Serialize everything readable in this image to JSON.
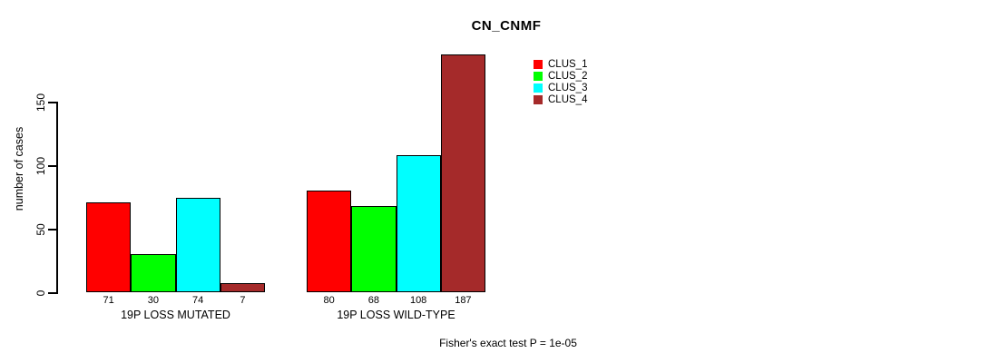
{
  "chart_data": {
    "type": "bar",
    "title": "CN_CNMF",
    "ylabel": "number of cases",
    "xlabel": "",
    "yticks": [
      0,
      50,
      100,
      150
    ],
    "ylim": [
      0,
      195
    ],
    "grid": false,
    "legend_position": "top-right-inside",
    "categories": [
      "19P LOSS MUTATED",
      "19P LOSS WILD-TYPE"
    ],
    "series": [
      {
        "name": "CLUS_1",
        "color": "#FF0000",
        "values": [
          71,
          80
        ]
      },
      {
        "name": "CLUS_2",
        "color": "#00FF00",
        "values": [
          30,
          68
        ]
      },
      {
        "name": "CLUS_3",
        "color": "#00FFFF",
        "values": [
          74,
          108
        ]
      },
      {
        "name": "CLUS_4",
        "color": "#A52A2A",
        "values": [
          7,
          187
        ]
      }
    ],
    "bar_value_labels": [
      [
        71,
        30,
        74,
        7
      ],
      [
        80,
        68,
        108,
        187
      ]
    ],
    "annotation": "Fisher's exact test P = 1e-05"
  },
  "colors": {
    "axis": "#000000",
    "text": "#000000",
    "background": "#FFFFFF"
  }
}
